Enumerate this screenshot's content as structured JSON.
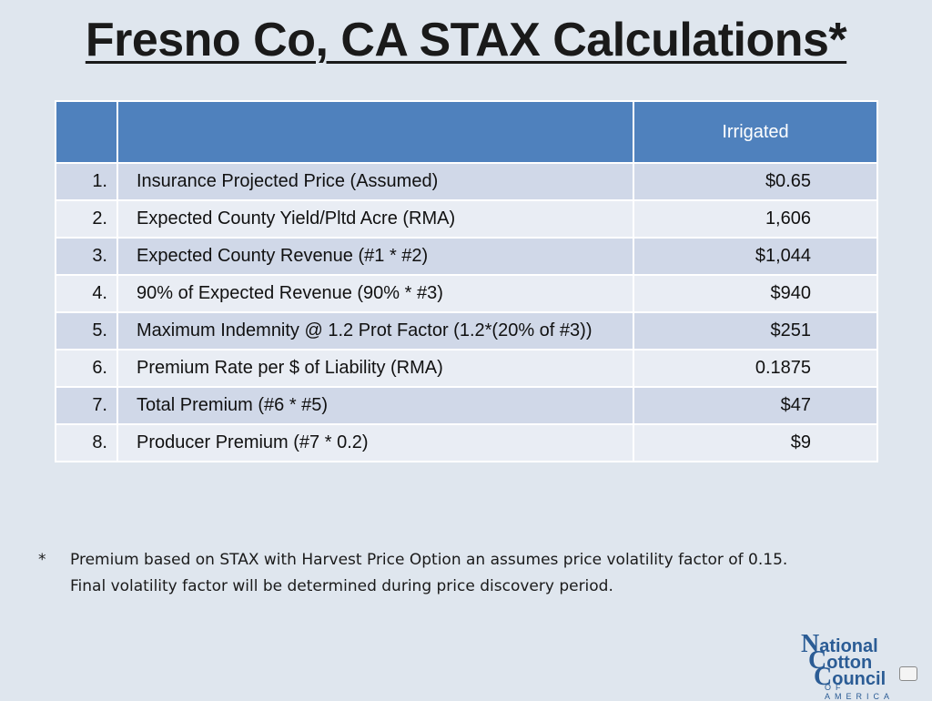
{
  "slide": {
    "title": "Fresno Co, CA STAX Calculations*"
  },
  "table": {
    "header": {
      "col1": "",
      "col2": "",
      "col3": "Irrigated"
    },
    "rows": [
      {
        "num": "1.",
        "desc": "Insurance Projected Price (Assumed)",
        "value": "$0.65"
      },
      {
        "num": "2.",
        "desc": "Expected County Yield/Pltd Acre (RMA)",
        "value": "1,606"
      },
      {
        "num": "3.",
        "desc": "Expected County Revenue (#1 * #2)",
        "value": "$1,044"
      },
      {
        "num": "4.",
        "desc": "90% of Expected Revenue (90% * #3)",
        "value": "$940"
      },
      {
        "num": "5.",
        "desc": "Maximum Indemnity @ 1.2 Prot Factor (1.2*(20% of #3))",
        "value": "$251"
      },
      {
        "num": "6.",
        "desc": "Premium Rate per $ of Liability (RMA)",
        "value": "0.1875"
      },
      {
        "num": "7.",
        "desc": "Total Premium (#6 * #5)",
        "value": "$47"
      },
      {
        "num": "8.",
        "desc": "Producer Premium (#7 * 0.2)",
        "value": "$9"
      }
    ]
  },
  "footnote": {
    "marker": "*",
    "text": "Premium based on STAX with Harvest Price Option an assumes price volatility factor of 0.15. Final volatility factor will be determined during price discovery period."
  },
  "logo": {
    "line1_cap": "N",
    "line1_rest": "ational",
    "line2_cap": "C",
    "line2_rest": "otton",
    "line3_cap": "C",
    "line3_rest": "ouncil",
    "subtitle": "OF AMERICA"
  },
  "colors": {
    "header_blue": "#4f81bd",
    "row_odd": "#d0d8e8",
    "row_even": "#e9edf4",
    "logo_blue": "#2b5c95"
  }
}
